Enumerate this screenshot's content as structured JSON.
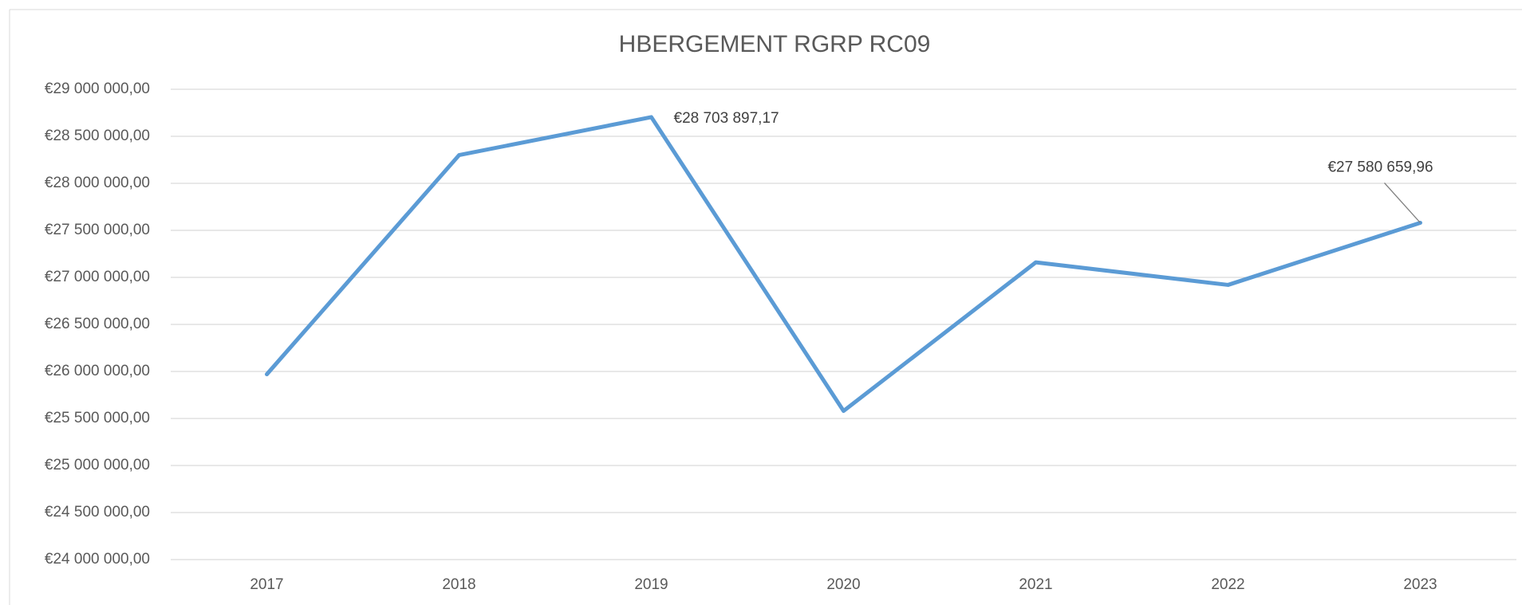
{
  "chart_data": {
    "type": "line",
    "title": "HBERGEMENT RGRP RC09",
    "categories": [
      "2017",
      "2018",
      "2019",
      "2020",
      "2021",
      "2022",
      "2023"
    ],
    "series": [
      {
        "name": "HBERGEMENT RGRP RC09",
        "color": "#5b9bd5",
        "values": [
          25970000,
          28300000,
          28703897.17,
          25580000,
          27160000,
          26920000,
          27580659.96
        ],
        "value_labels": [
          null,
          null,
          "€28 703 897,17",
          null,
          null,
          null,
          "€27 580 659,96"
        ]
      }
    ],
    "ylim": [
      24000000,
      29000000
    ],
    "yticks": [
      {
        "value": 24000000,
        "label": "€24 000 000,00"
      },
      {
        "value": 24500000,
        "label": "€24 500 000,00"
      },
      {
        "value": 25000000,
        "label": "€25 000 000,00"
      },
      {
        "value": 25500000,
        "label": "€25 500 000,00"
      },
      {
        "value": 26000000,
        "label": "€26 000 000,00"
      },
      {
        "value": 26500000,
        "label": "€26 500 000,00"
      },
      {
        "value": 27000000,
        "label": "€27 000 000,00"
      },
      {
        "value": 27500000,
        "label": "€27 500 000,00"
      },
      {
        "value": 28000000,
        "label": "€28 000 000,00"
      },
      {
        "value": 28500000,
        "label": "€28 500 000,00"
      },
      {
        "value": 29000000,
        "label": "€29 000 000,00"
      }
    ],
    "grid": true
  }
}
